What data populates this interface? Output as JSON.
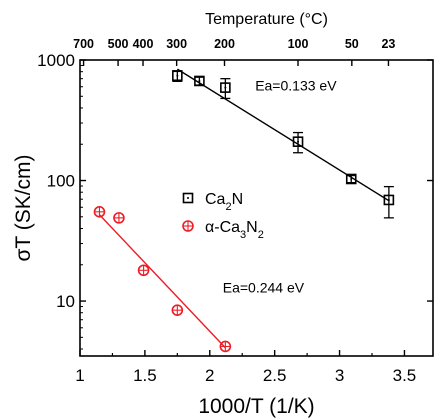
{
  "chart_data": {
    "type": "scatter",
    "xlabel": "1000/T (1/K)",
    "ylabel": "σT (SK/cm)",
    "top_axis_label": "Temperature (°C)",
    "xlim": [
      1.0,
      3.72
    ],
    "ylim": [
      3.5,
      1000
    ],
    "yscale": "log",
    "x_ticks": [
      1,
      1.5,
      2,
      2.5,
      3,
      3.5
    ],
    "x_tick_labels": [
      "1",
      "1.5",
      "2",
      "2.5",
      "3",
      "3.5"
    ],
    "y_ticks": [
      10,
      100,
      1000
    ],
    "y_tick_labels": [
      "10",
      "100",
      "1000"
    ],
    "top_ticks": [
      {
        "celsius": 700,
        "label": "700"
      },
      {
        "celsius": 500,
        "label": "500"
      },
      {
        "celsius": 400,
        "label": "400"
      },
      {
        "celsius": 300,
        "label": "300"
      },
      {
        "celsius": 200,
        "label": "200"
      },
      {
        "celsius": 100,
        "label": "100"
      },
      {
        "celsius": 50,
        "label": "50"
      },
      {
        "celsius": 23,
        "label": "23"
      }
    ],
    "grid": false,
    "legend": {
      "position": "center-left",
      "entries": [
        {
          "series": 0,
          "base": "Ca",
          "sub1": "2",
          "mid": "N",
          "sub2": "",
          "tail": ""
        },
        {
          "series": 1,
          "base": "α-Ca",
          "sub1": "3",
          "mid": "N",
          "sub2": "2",
          "tail": ""
        }
      ]
    },
    "series": [
      {
        "marker": "square",
        "color": "#000000",
        "points": [
          {
            "x": 1.75,
            "y": 740,
            "err": 75
          },
          {
            "x": 1.92,
            "y": 670,
            "err": 50
          },
          {
            "x": 2.12,
            "y": 590,
            "err": 110
          },
          {
            "x": 2.68,
            "y": 210,
            "err": 40
          },
          {
            "x": 3.09,
            "y": 103,
            "err": 7
          },
          {
            "x": 3.38,
            "y": 69,
            "err": 20
          }
        ],
        "fit": {
          "x": [
            1.75,
            3.38
          ],
          "y": [
            840,
            68
          ]
        }
      },
      {
        "marker": "circle",
        "color": "#ee1c25",
        "points": [
          {
            "x": 1.15,
            "y": 55
          },
          {
            "x": 1.3,
            "y": 49
          },
          {
            "x": 1.49,
            "y": 18
          },
          {
            "x": 1.75,
            "y": 8.4
          },
          {
            "x": 2.12,
            "y": 4.2
          }
        ],
        "fit": {
          "x": [
            1.15,
            2.12
          ],
          "y": [
            52,
            4.1
          ]
        }
      }
    ],
    "annotations": [
      {
        "text": "Ea=0.133 eV",
        "x": 2.35,
        "y": 560
      },
      {
        "text": "Ea=0.244 eV",
        "x": 2.1,
        "y": 11.8
      }
    ]
  }
}
